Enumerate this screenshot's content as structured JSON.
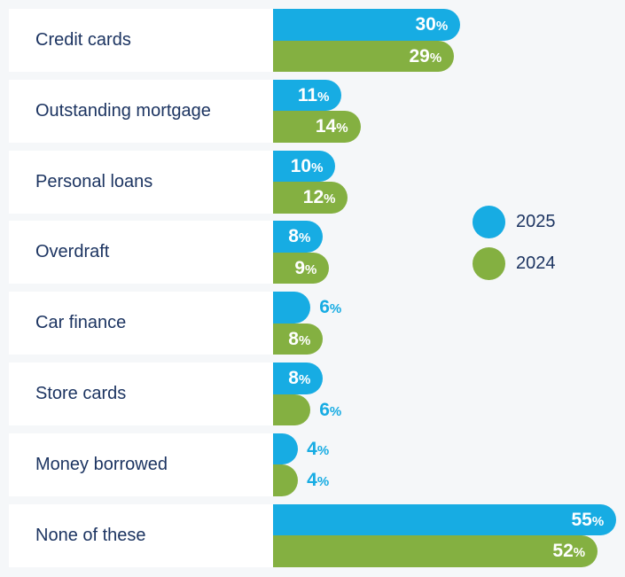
{
  "chart_data": {
    "type": "bar",
    "orientation": "horizontal",
    "categories": [
      "Credit cards",
      "Outstanding mortgage",
      "Personal loans",
      "Overdraft",
      "Car finance",
      "Store cards",
      "Money borrowed",
      "None of these"
    ],
    "series": [
      {
        "name": "2025",
        "color": "#17ace3",
        "values": [
          30,
          11,
          10,
          8,
          6,
          8,
          4,
          55
        ]
      },
      {
        "name": "2024",
        "color": "#84b041",
        "values": [
          29,
          14,
          12,
          9,
          8,
          6,
          4,
          52
        ]
      }
    ],
    "unit": "%",
    "xlim": [
      0,
      55
    ],
    "legend": "right-center",
    "grid": false
  }
}
